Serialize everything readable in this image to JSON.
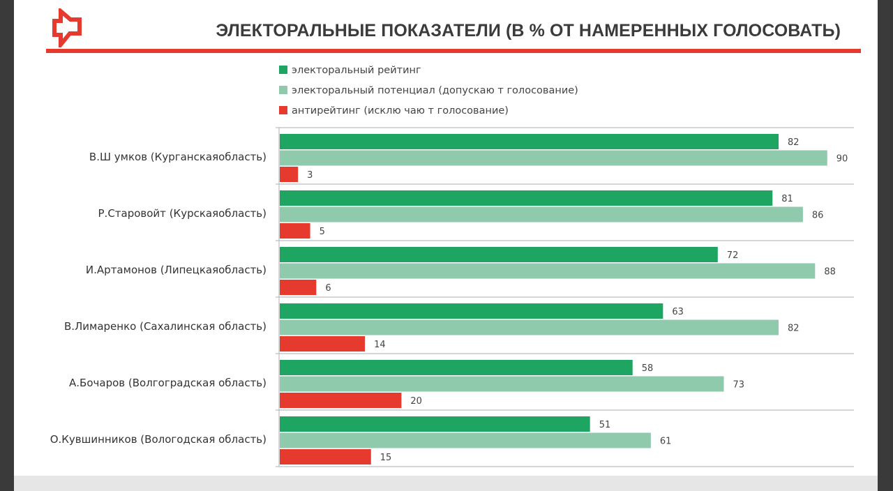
{
  "header": {
    "title": "ЭЛЕКТОРАЛЬНЫЕ ПОКАЗАТЕЛИ (В % ОТ НАМЕРЕННЫХ ГОЛОСОВАТЬ)",
    "logo_icon": "red-outline-logo-icon"
  },
  "colors": {
    "accent": "#e63a2e",
    "rating": "#1ea562",
    "potential": "#8fcaac",
    "antirating": "#e63a2e"
  },
  "chart_data": {
    "type": "bar",
    "orientation": "horizontal",
    "title": "ЭЛЕКТОРАЛЬНЫЕ ПОКАЗАТЕЛИ (В % ОТ НАМЕРЕННЫХ ГОЛОСОВАТЬ)",
    "xlabel": "",
    "ylabel": "",
    "xlim": [
      0,
      100
    ],
    "grid": "horizontal separators between groups",
    "legend_position": "top-left",
    "categories": [
      "В.Ш умков (Курганскаяобласть)",
      "Р.Старовойт (Курскаяобласть)",
      "И.Артамонов (Липецкаяобласть)",
      "В.Лимаренко (Сахалинская область)",
      "А.Бочаров (Волгоградская область)",
      "О.Кувшинников (Вологодская область)"
    ],
    "series": [
      {
        "name": "электоральный рейтинг",
        "color": "#1ea562",
        "values": [
          82,
          81,
          72,
          63,
          58,
          51
        ]
      },
      {
        "name": "электоральный потенциал (допускаю т голосование)",
        "color": "#8fcaac",
        "values": [
          90,
          86,
          88,
          82,
          73,
          61
        ]
      },
      {
        "name": "антирейтинг (исклю чаю т голосование)",
        "color": "#e63a2e",
        "values": [
          3,
          5,
          6,
          14,
          20,
          15
        ]
      }
    ]
  }
}
